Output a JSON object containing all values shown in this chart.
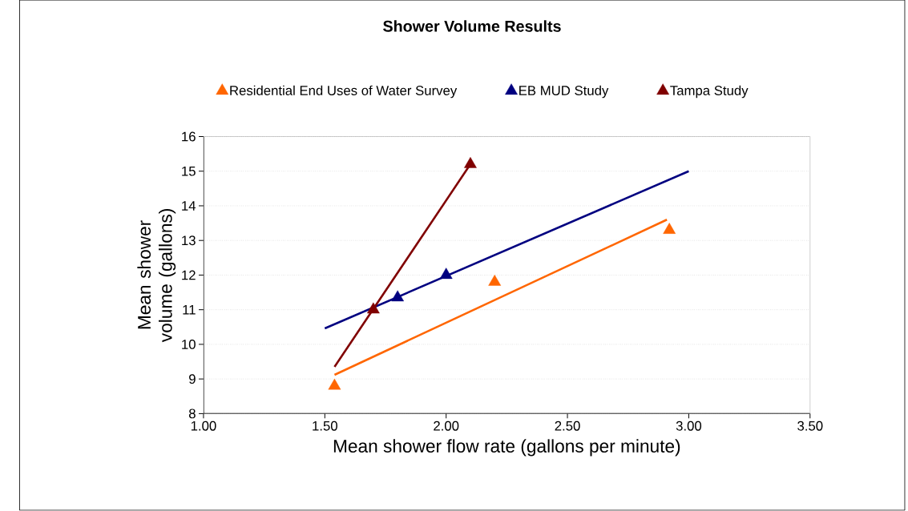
{
  "chart_data": {
    "type": "scatter",
    "title": "Shower Volume Results",
    "xlabel": "Mean shower flow rate (gallons per minute)",
    "ylabel": "Mean shower volume (gallons)",
    "xlim": [
      1.0,
      3.5
    ],
    "xticks": [
      {
        "value": 1.0,
        "label": "1.00"
      },
      {
        "value": 1.5,
        "label": "1.50"
      },
      {
        "value": 2.0,
        "label": "2.00"
      },
      {
        "value": 2.5,
        "label": "2.50"
      },
      {
        "value": 3.0,
        "label": "3.00"
      },
      {
        "value": 3.5,
        "label": "3.50"
      }
    ],
    "ylim": [
      8,
      16
    ],
    "yticks": [
      8,
      9,
      10,
      11,
      12,
      13,
      14,
      15,
      16
    ],
    "grid": "y",
    "legend": "top",
    "marker": "triangle",
    "series": [
      {
        "name": "Residential End Uses of Water Survey",
        "color": "#ff6600",
        "x": [
          1.54,
          2.2,
          2.92
        ],
        "values": [
          8.8,
          11.8,
          13.3
        ]
      },
      {
        "name": "EB MUD Study",
        "color": "#000080",
        "x": [
          1.8,
          2.0
        ],
        "values": [
          11.35,
          12.0
        ]
      },
      {
        "name": "Tampa Study",
        "color": "#800000",
        "x": [
          1.7,
          2.1
        ],
        "values": [
          11.0,
          15.2
        ]
      },
      {
        "type": "line",
        "marker": "none",
        "color": "#ff6600",
        "x": [
          1.54,
          2.91
        ],
        "values": [
          9.12,
          13.6
        ]
      },
      {
        "type": "line",
        "marker": "none",
        "color": "#000080",
        "x": [
          1.5,
          3.0
        ],
        "values": [
          10.46,
          15.0
        ]
      },
      {
        "type": "line",
        "marker": "none",
        "color": "#800000",
        "x": [
          1.54,
          2.1
        ],
        "values": [
          9.35,
          15.2
        ]
      }
    ]
  }
}
